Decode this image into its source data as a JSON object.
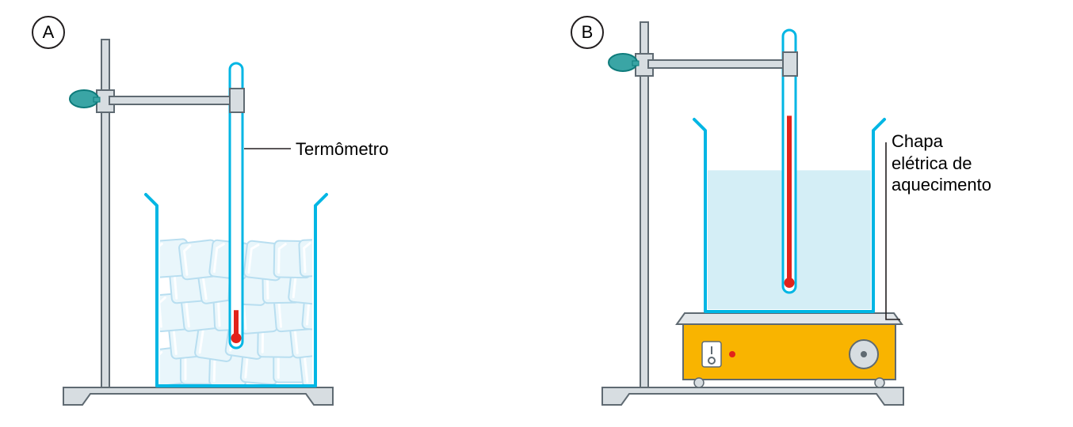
{
  "panelA": {
    "badge": "A",
    "labels": {
      "thermometer": "Termômetro"
    },
    "mercury_level": 0.12,
    "beaker_fill_kind": "ice"
  },
  "panelB": {
    "badge": "B",
    "labels": {
      "hotplate": "Chapa\nelétrica de\naquecimento"
    },
    "mercury_level": 0.68,
    "beaker_fill_kind": "water"
  },
  "style": {
    "colors": {
      "stand_fill": "#d7dde1",
      "stand_stroke": "#5f6a72",
      "knob_fill": "#3aa5a5",
      "knob_stroke": "#0e7b7b",
      "beaker_stroke": "#00b6e4",
      "water_fill": "#d4eef6",
      "ice_fill": "#e9f6fb",
      "ice_stroke": "#b8def0",
      "thermo_stroke": "#00b6e4",
      "mercury": "#e2231a",
      "label_line": "#231f20",
      "hotplate_body": "#f9b400",
      "hotplate_body_stroke": "#5f6a72",
      "hotplate_top_fill": "#e3e7ea",
      "hotplate_top_stroke": "#5f6a72",
      "dial_fill": "#d7dde1",
      "dial_stroke": "#5f6a72",
      "led": "#e2231a",
      "switch_bg": "#ffffff"
    },
    "strokes": {
      "beaker": 4,
      "thermo": 3,
      "stand": 2,
      "label_line": 1.6
    },
    "font": {
      "label_size": 22
    }
  }
}
